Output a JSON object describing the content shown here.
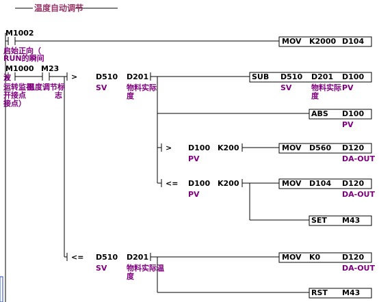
{
  "title": "温度自动调节",
  "rungs": [
    {
      "contacts": [
        "M1002"
      ],
      "comments": [
        "启始正向（",
        "RUN的瞬间"
      ],
      "outputs": [
        {
          "op": "MOV",
          "args": [
            "K2000",
            "D104"
          ]
        }
      ]
    },
    {
      "contacts": [
        "M1000",
        "M23"
      ],
      "comments": [
        "波",
        "运转监视",
        "温度调节标",
        "开接点",
        "志",
        "接点）"
      ],
      "branches": [
        {
          "compare": {
            "op": ">",
            "args": [
              "D510",
              "D201"
            ],
            "notes": [
              "SV",
              "物料实际",
              "度"
            ]
          },
          "outputs": [
            {
              "op": "SUB",
              "args": [
                "D510",
                "D201",
                "D100"
              ],
              "notes": [
                "SV",
                "物料实际",
                "PV",
                "度"
              ]
            },
            {
              "op": "ABS",
              "args": [
                "D100"
              ],
              "notes": [
                "PV"
              ]
            }
          ],
          "sub": [
            {
              "compare": {
                "op": ">",
                "args": [
                  "D100",
                  "K200"
                ],
                "notes": [
                  "PV"
                ]
              },
              "outputs": [
                {
                  "op": "MOV",
                  "args": [
                    "D560",
                    "D120"
                  ],
                  "notes": [
                    "DA-OUT"
                  ]
                }
              ]
            },
            {
              "compare": {
                "op": "<=",
                "args": [
                  "D100",
                  "K200"
                ],
                "notes": [
                  "PV"
                ]
              },
              "outputs": [
                {
                  "op": "MOV",
                  "args": [
                    "D104",
                    "D120"
                  ],
                  "notes": [
                    "DA-OUT"
                  ]
                },
                {
                  "op": "SET",
                  "args": [
                    "M43"
                  ]
                }
              ]
            }
          ]
        },
        {
          "compare": {
            "op": "<=",
            "args": [
              "D510",
              "D201"
            ],
            "notes": [
              "SV",
              "物料实际温",
              "度"
            ]
          },
          "outputs": [
            {
              "op": "MOV",
              "args": [
                "K0",
                "D120"
              ],
              "notes": [
                "DA-OUT"
              ]
            },
            {
              "op": "RST",
              "args": [
                "M43"
              ]
            }
          ]
        }
      ]
    }
  ]
}
